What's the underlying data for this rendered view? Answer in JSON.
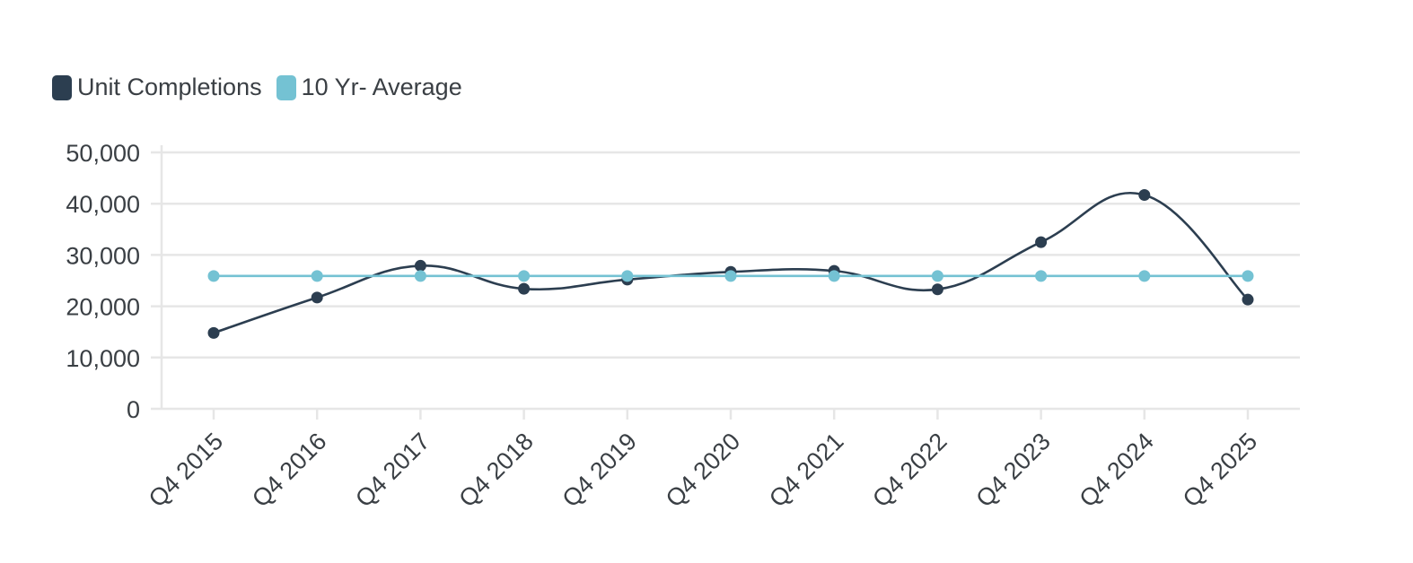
{
  "chart_data": {
    "type": "line",
    "categories": [
      "Q4 2015",
      "Q4 2016",
      "Q4 2017",
      "Q4 2018",
      "Q4 2019",
      "Q4 2020",
      "Q4 2021",
      "Q4 2022",
      "Q4 2023",
      "Q4 2024",
      "Q4 2025"
    ],
    "series": [
      {
        "name": "Unit Completions",
        "color": "#2c3e50",
        "smooth": true,
        "values": [
          14800,
          21700,
          27900,
          23400,
          25200,
          26700,
          26900,
          23300,
          32500,
          41700,
          21300
        ]
      },
      {
        "name": "10 Yr- Average",
        "color": "#74c2d3",
        "smooth": false,
        "values": [
          25900,
          25900,
          25900,
          25900,
          25900,
          25900,
          25900,
          25900,
          25900,
          25900,
          25900
        ]
      }
    ],
    "ylim": [
      0,
      50000
    ],
    "yticks": [
      0,
      10000,
      20000,
      30000,
      40000,
      50000
    ],
    "ytick_labels": [
      "0",
      "10,000",
      "20,000",
      "30,000",
      "40,000",
      "50,000"
    ],
    "grid": true,
    "legend_position": "top-left",
    "xlabel": "",
    "ylabel": ""
  }
}
